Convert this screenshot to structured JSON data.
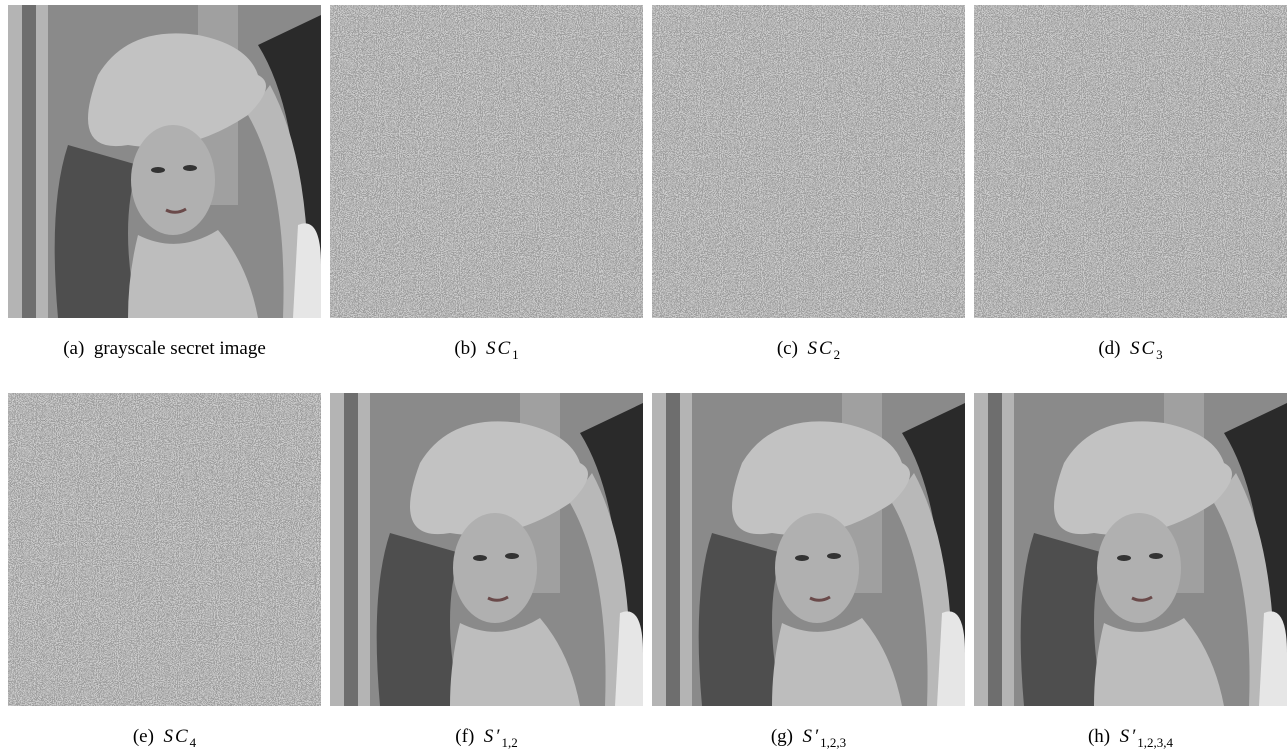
{
  "panels": [
    {
      "label": "(a)",
      "caption": "grayscale secret image"
    },
    {
      "label": "(b)",
      "symbol": "SC",
      "subscript": "1"
    },
    {
      "label": "(c)",
      "symbol": "SC",
      "subscript": "2"
    },
    {
      "label": "(d)",
      "symbol": "SC",
      "subscript": "3"
    },
    {
      "label": "(e)",
      "symbol": "SC",
      "subscript": "4"
    },
    {
      "label": "(f)",
      "symbol": "S′",
      "subscript": "1,2"
    },
    {
      "label": "(g)",
      "symbol": "S′",
      "subscript": "1,2,3"
    },
    {
      "label": "(h)",
      "symbol": "S′",
      "subscript": "1,2,3,4"
    }
  ]
}
